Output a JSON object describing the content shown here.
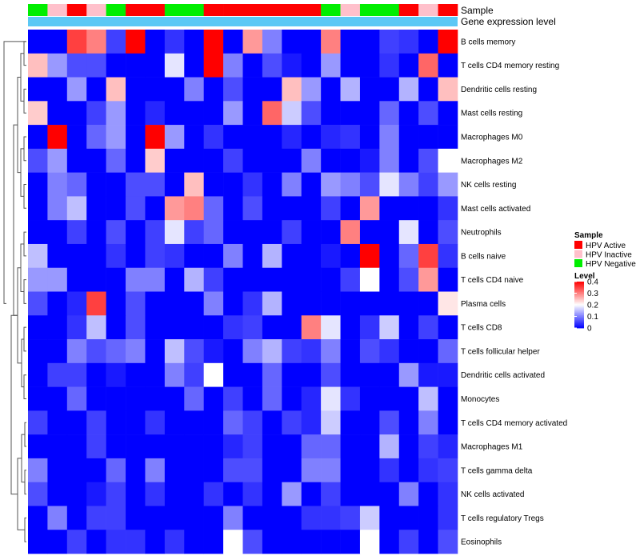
{
  "chart_data": {
    "type": "heatmap",
    "title": "",
    "annotation_tracks": [
      {
        "label": "Sample",
        "values": [
          "Negative",
          "Inactive",
          "Active",
          "Inactive",
          "Negative",
          "Active",
          "Active",
          "Negative",
          "Negative",
          "Active",
          "Active",
          "Active",
          "Active",
          "Active",
          "Active",
          "Negative",
          "Inactive",
          "Negative",
          "Negative",
          "Active",
          "Inactive",
          "Active"
        ]
      },
      {
        "label": "Gene expression level",
        "values": [
          "light",
          "light",
          "light",
          "light",
          "light",
          "light",
          "light",
          "light",
          "light",
          "light",
          "light",
          "light",
          "light",
          "light",
          "light",
          "light",
          "light",
          "light",
          "light",
          "light",
          "light",
          "light"
        ]
      }
    ],
    "rows": [
      "B cells memory",
      "T cells CD4 memory resting",
      "Dendritic cells resting",
      "Mast cells resting",
      "Macrophages M0",
      "Macrophages M2",
      "NK cells resting",
      "Mast cells activated",
      "Neutrophils",
      "B cells naive",
      "T cells CD4 naive",
      "Plasma cells",
      "T cells CD8",
      "T cells follicular helper",
      "Dendritic cells activated",
      "Monocytes",
      "T cells CD4 memory activated",
      "Macrophages M1",
      "T cells gamma delta",
      "NK cells activated",
      "T cells regulatory  Tregs",
      "Eosinophils"
    ],
    "values": [
      [
        0.0,
        0.0,
        0.35,
        0.3,
        0.05,
        0.4,
        0.0,
        0.04,
        0.0,
        0.4,
        0.0,
        0.28,
        0.1,
        0.0,
        0.0,
        0.3,
        0.0,
        0.0,
        0.05,
        0.04,
        0.0,
        0.4
      ],
      [
        0.25,
        0.12,
        0.06,
        0.06,
        0.0,
        0.0,
        0.0,
        0.18,
        0.0,
        0.4,
        0.1,
        0.0,
        0.06,
        0.02,
        0.0,
        0.12,
        0.0,
        0.0,
        0.04,
        0.0,
        0.32,
        0.0
      ],
      [
        0.0,
        0.0,
        0.12,
        0.0,
        0.25,
        0.0,
        0.0,
        0.0,
        0.1,
        0.0,
        0.06,
        0.0,
        0.0,
        0.25,
        0.12,
        0.0,
        0.14,
        0.0,
        0.0,
        0.14,
        0.0,
        0.25
      ],
      [
        0.24,
        0.0,
        0.0,
        0.05,
        0.12,
        0.0,
        0.03,
        0.0,
        0.0,
        0.0,
        0.12,
        0.0,
        0.32,
        0.16,
        0.06,
        0.0,
        0.0,
        0.0,
        0.08,
        0.0,
        0.06,
        0.0
      ],
      [
        0.0,
        0.4,
        0.0,
        0.08,
        0.12,
        0.0,
        0.4,
        0.12,
        0.0,
        0.04,
        0.0,
        0.0,
        0.0,
        0.03,
        0.0,
        0.03,
        0.04,
        0.0,
        0.1,
        0.0,
        0.0,
        0.0
      ],
      [
        0.06,
        0.12,
        0.0,
        0.0,
        0.08,
        0.0,
        0.24,
        0.0,
        0.0,
        0.0,
        0.05,
        0.0,
        0.0,
        0.0,
        0.1,
        0.0,
        0.0,
        0.02,
        0.1,
        0.0,
        0.06,
        0.2
      ],
      [
        0.0,
        0.1,
        0.08,
        0.0,
        0.0,
        0.06,
        0.06,
        0.0,
        0.25,
        0.0,
        0.0,
        0.04,
        0.0,
        0.1,
        0.0,
        0.12,
        0.1,
        0.06,
        0.18,
        0.1,
        0.05,
        0.12
      ],
      [
        0.0,
        0.1,
        0.15,
        0.0,
        0.0,
        0.06,
        0.0,
        0.28,
        0.3,
        0.08,
        0.0,
        0.06,
        0.0,
        0.0,
        0.0,
        0.05,
        0.0,
        0.28,
        0.0,
        0.0,
        0.0,
        0.04
      ],
      [
        0.0,
        0.0,
        0.05,
        0.0,
        0.06,
        0.0,
        0.05,
        0.18,
        0.05,
        0.08,
        0.0,
        0.0,
        0.0,
        0.05,
        0.0,
        0.0,
        0.3,
        0.0,
        0.0,
        0.18,
        0.0,
        0.06
      ],
      [
        0.15,
        0.0,
        0.0,
        0.0,
        0.04,
        0.0,
        0.05,
        0.04,
        0.0,
        0.0,
        0.1,
        0.0,
        0.14,
        0.0,
        0.0,
        0.02,
        0.0,
        0.4,
        0.0,
        0.08,
        0.35,
        0.04
      ],
      [
        0.12,
        0.12,
        0.0,
        0.0,
        0.0,
        0.1,
        0.1,
        0.0,
        0.14,
        0.05,
        0.0,
        0.0,
        0.0,
        0.0,
        0.0,
        0.0,
        0.05,
        0.2,
        0.0,
        0.06,
        0.28,
        0.0
      ],
      [
        0.06,
        0.0,
        0.03,
        0.35,
        0.0,
        0.06,
        0.0,
        0.0,
        0.0,
        0.1,
        0.0,
        0.04,
        0.14,
        0.0,
        0.0,
        0.0,
        0.0,
        0.0,
        0.0,
        0.0,
        0.0,
        0.22
      ],
      [
        0.0,
        0.0,
        0.04,
        0.15,
        0.0,
        0.06,
        0.0,
        0.0,
        0.0,
        0.0,
        0.04,
        0.05,
        0.0,
        0.0,
        0.3,
        0.18,
        0.0,
        0.04,
        0.16,
        0.0,
        0.05,
        0.0
      ],
      [
        0.0,
        0.0,
        0.1,
        0.06,
        0.08,
        0.1,
        0.0,
        0.15,
        0.06,
        0.02,
        0.0,
        0.1,
        0.14,
        0.05,
        0.04,
        0.1,
        0.0,
        0.06,
        0.04,
        0.0,
        0.0,
        0.08
      ],
      [
        0.0,
        0.05,
        0.05,
        0.0,
        0.02,
        0.0,
        0.0,
        0.1,
        0.05,
        0.2,
        0.0,
        0.0,
        0.08,
        0.0,
        0.0,
        0.06,
        0.0,
        0.0,
        0.0,
        0.12,
        0.02,
        0.02
      ],
      [
        0.0,
        0.0,
        0.08,
        0.0,
        0.0,
        0.0,
        0.0,
        0.0,
        0.08,
        0.0,
        0.05,
        0.0,
        0.08,
        0.0,
        0.03,
        0.18,
        0.04,
        0.0,
        0.0,
        0.0,
        0.15,
        0.0
      ],
      [
        0.05,
        0.0,
        0.0,
        0.05,
        0.0,
        0.0,
        0.04,
        0.0,
        0.0,
        0.0,
        0.08,
        0.05,
        0.0,
        0.05,
        0.03,
        0.16,
        0.0,
        0.0,
        0.06,
        0.0,
        0.1,
        0.0
      ],
      [
        0.0,
        0.0,
        0.0,
        0.05,
        0.0,
        0.0,
        0.0,
        0.0,
        0.0,
        0.0,
        0.03,
        0.05,
        0.0,
        0.0,
        0.08,
        0.08,
        0.0,
        0.0,
        0.14,
        0.0,
        0.05,
        0.03
      ],
      [
        0.1,
        0.0,
        0.0,
        0.0,
        0.08,
        0.0,
        0.1,
        0.0,
        0.0,
        0.0,
        0.06,
        0.06,
        0.0,
        0.0,
        0.1,
        0.1,
        0.0,
        0.0,
        0.04,
        0.0,
        0.04,
        0.05
      ],
      [
        0.06,
        0.0,
        0.0,
        0.02,
        0.05,
        0.0,
        0.04,
        0.0,
        0.0,
        0.04,
        0.0,
        0.04,
        0.0,
        0.12,
        0.0,
        0.05,
        0.0,
        0.0,
        0.0,
        0.1,
        0.0,
        0.04
      ],
      [
        0.0,
        0.1,
        0.0,
        0.05,
        0.05,
        0.0,
        0.0,
        0.0,
        0.0,
        0.0,
        0.1,
        0.0,
        0.0,
        0.0,
        0.04,
        0.04,
        0.05,
        0.16,
        0.0,
        0.0,
        0.0,
        0.04
      ],
      [
        0.0,
        0.0,
        0.05,
        0.0,
        0.04,
        0.04,
        0.0,
        0.04,
        0.0,
        0.0,
        0.2,
        0.06,
        0.0,
        0.0,
        0.0,
        0.0,
        0.0,
        0.2,
        0.0,
        0.05,
        0.0,
        0.06
      ]
    ],
    "color_scale": {
      "min": 0,
      "max": 0.4,
      "low": "#0000ff",
      "mid": "#ffffff",
      "high": "#ff0000"
    },
    "legends": {
      "sample": {
        "title": "Sample",
        "items": [
          {
            "label": "HPV Active",
            "color": "#ff0000"
          },
          {
            "label": "HPV Inactive",
            "color": "#ffc0cb"
          },
          {
            "label": "HPV Negative",
            "color": "#00ee00"
          }
        ]
      },
      "level": {
        "title": "Level",
        "ticks": [
          0.4,
          0.3,
          0.2,
          0.1,
          0
        ],
        "tick_labels": [
          "0.4",
          "0.3",
          "0.2",
          "0.1",
          "0"
        ]
      }
    },
    "gene_expression_color": "#5bc8f5",
    "legend_placement": "right"
  }
}
